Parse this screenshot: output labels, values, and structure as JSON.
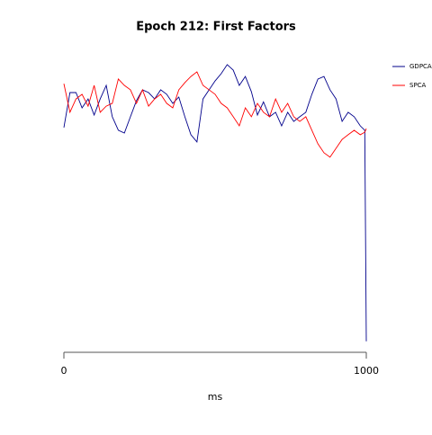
{
  "chart_data": {
    "type": "line",
    "title": "Epoch 212: First Factors",
    "xlabel": "ms",
    "x": [
      0,
      20,
      40,
      60,
      80,
      100,
      120,
      140,
      160,
      180,
      200,
      220,
      240,
      260,
      280,
      300,
      320,
      340,
      360,
      380,
      400,
      420,
      440,
      460,
      480,
      500,
      520,
      540,
      560,
      580,
      600,
      620,
      640,
      660,
      680,
      700,
      720,
      740,
      760,
      780,
      800,
      820,
      840,
      860,
      880,
      900,
      920,
      940,
      960,
      980,
      995,
      1000
    ],
    "series": [
      {
        "name": "GDPCA",
        "color": "#00008b",
        "values": [
          0.011,
          0.176,
          0.176,
          0.104,
          0.146,
          0.07,
          0.146,
          0.21,
          0.062,
          -0.002,
          -0.015,
          0.062,
          0.138,
          0.189,
          0.176,
          0.146,
          0.189,
          0.168,
          0.125,
          0.155,
          0.062,
          -0.023,
          -0.057,
          0.146,
          0.189,
          0.231,
          0.265,
          0.308,
          0.282,
          0.21,
          0.252,
          0.18,
          0.07,
          0.132,
          0.062,
          0.083,
          0.019,
          0.083,
          0.04,
          0.062,
          0.083,
          0.168,
          0.24,
          0.252,
          0.189,
          0.146,
          0.04,
          0.083,
          0.062,
          0.019,
          -0.002,
          -0.998
        ]
      },
      {
        "name": "SPCA",
        "color": "#ff0000",
        "values": [
          0.218,
          0.083,
          0.146,
          0.168,
          0.112,
          0.21,
          0.083,
          0.112,
          0.125,
          0.24,
          0.21,
          0.189,
          0.125,
          0.189,
          0.112,
          0.146,
          0.168,
          0.125,
          0.104,
          0.189,
          0.223,
          0.252,
          0.274,
          0.21,
          0.189,
          0.168,
          0.125,
          0.104,
          0.062,
          0.019,
          0.104,
          0.062,
          0.125,
          0.083,
          0.062,
          0.146,
          0.083,
          0.125,
          0.062,
          0.04,
          0.062,
          -0.002,
          -0.066,
          -0.108,
          -0.129,
          -0.087,
          -0.045,
          -0.023,
          -0.002,
          -0.023,
          -0.011,
          0.006
        ]
      }
    ],
    "xlim": [
      0,
      1000
    ],
    "xticks": [
      0,
      1000
    ],
    "ylim": [
      -1.05,
      0.35
    ],
    "legend": "top-right"
  }
}
